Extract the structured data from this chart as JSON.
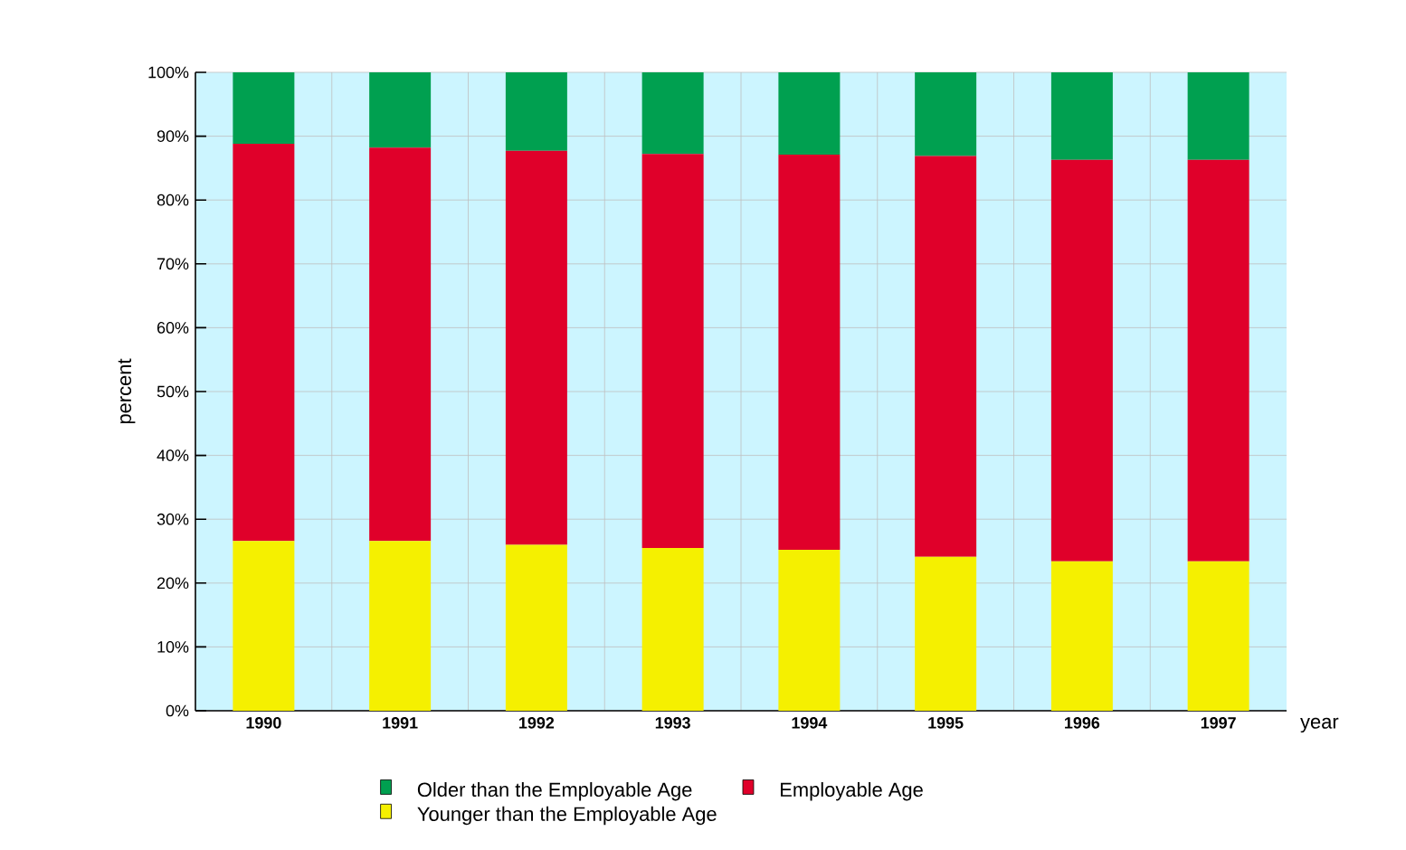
{
  "chart_data": {
    "type": "bar",
    "stacked": true,
    "xlabel": "year",
    "ylabel": "percent",
    "categories": [
      "1990",
      "1991",
      "1992",
      "1993",
      "1994",
      "1995",
      "1996",
      "1997"
    ],
    "series": [
      {
        "name": "Younger than the Employable Age",
        "color": "#f5f000",
        "values": [
          26.6,
          26.6,
          26.0,
          25.5,
          25.2,
          24.1,
          23.4,
          23.4
        ]
      },
      {
        "name": "Employable Age",
        "color": "#e0002a",
        "values": [
          62.2,
          61.6,
          61.7,
          61.7,
          61.9,
          62.8,
          62.9,
          62.9
        ]
      },
      {
        "name": "Older than the Employable Age",
        "color": "#00a050",
        "values": [
          11.2,
          11.8,
          12.3,
          12.8,
          12.9,
          13.1,
          13.7,
          13.7
        ]
      }
    ],
    "ylim": [
      0,
      100
    ],
    "yticks": [
      {
        "value": 0,
        "label": "0%"
      },
      {
        "value": 10,
        "label": "10%"
      },
      {
        "value": 20,
        "label": "20%"
      },
      {
        "value": 30,
        "label": "30%"
      },
      {
        "value": 40,
        "label": "40%"
      },
      {
        "value": 50,
        "label": "50%"
      },
      {
        "value": 60,
        "label": "60%"
      },
      {
        "value": 70,
        "label": "70%"
      },
      {
        "value": 80,
        "label": "80%"
      },
      {
        "value": 90,
        "label": "90%"
      },
      {
        "value": 100,
        "label": "100%"
      }
    ],
    "grid": true,
    "legend": "bottom"
  }
}
